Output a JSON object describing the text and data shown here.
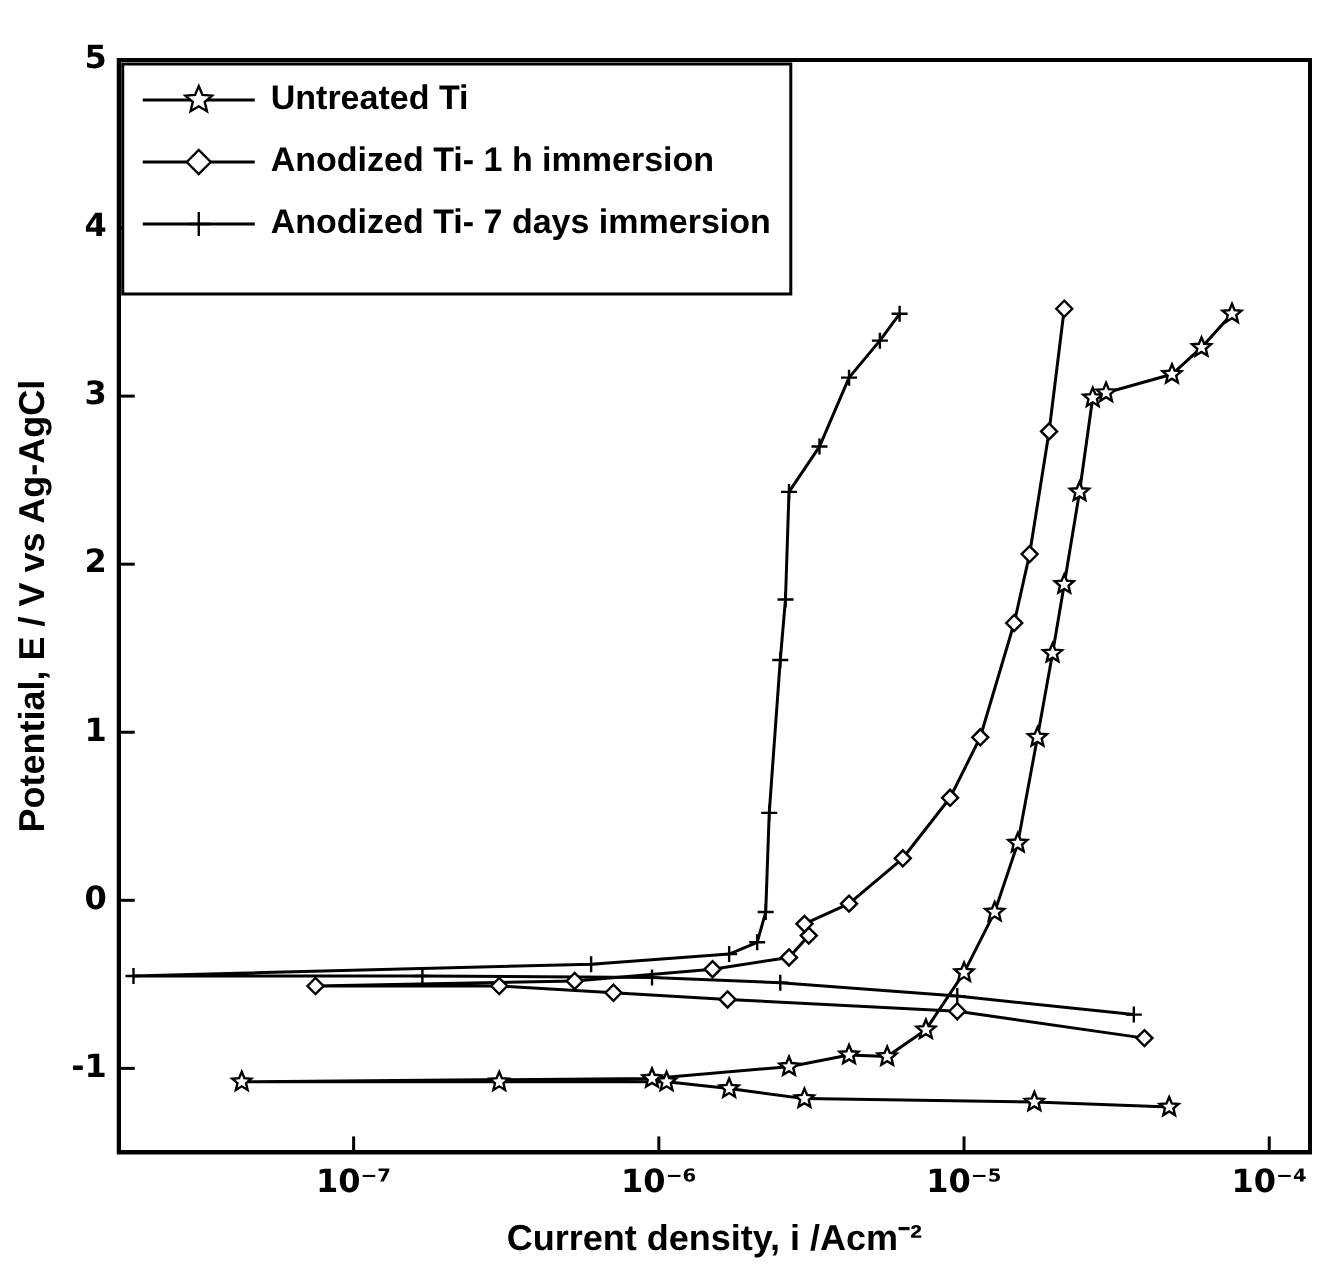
{
  "chart_data": {
    "type": "line",
    "xlabel": "Current density, i /Acm⁻²",
    "ylabel": "Potential, E / V vs Ag-AgCl",
    "log": "x",
    "xlim": [
      1.7e-08,
      0.000136
    ],
    "ylim": [
      -1.5,
      5
    ],
    "xticks": [
      {
        "value": 1e-07,
        "label": "10⁻⁷"
      },
      {
        "value": 1e-06,
        "label": "10⁻⁶"
      },
      {
        "value": 1e-05,
        "label": "10⁻⁵"
      },
      {
        "value": 0.0001,
        "label": "10⁻⁴"
      }
    ],
    "yticks": [
      -1,
      0,
      1,
      2,
      3,
      4,
      5
    ],
    "grid": false,
    "legend": "top left",
    "series": [
      {
        "name": "Untreated Ti",
        "color": "#000000",
        "marker": "star",
        "x": [
          4.7e-05,
          1.7e-05,
          3e-06,
          1.7e-06,
          1.06e-06,
          3e-07,
          4.3e-08,
          9.5e-07,
          2.67e-06,
          4.2e-06,
          5.6e-06,
          7.5e-06,
          1e-05,
          1.26e-05,
          1.5e-05,
          1.74e-05,
          1.95e-05,
          2.13e-05,
          2.39e-05,
          2.64e-05,
          2.92e-05,
          4.8e-05,
          6e-05,
          7.55e-05
        ],
        "values": [
          -1.23,
          -1.2,
          -1.18,
          -1.12,
          -1.08,
          -1.08,
          -1.08,
          -1.06,
          -0.99,
          -0.92,
          -0.93,
          -0.77,
          -0.43,
          -0.07,
          0.34,
          0.97,
          1.47,
          1.88,
          2.43,
          2.99,
          3.02,
          3.13,
          3.29,
          3.49
        ]
      },
      {
        "name": "Anodized Ti- 1 h immersion",
        "color": "#000000",
        "marker": "diamond",
        "x": [
          3.9e-05,
          9.5e-06,
          1.68e-06,
          7.1e-07,
          3e-07,
          7.5e-08,
          5.3e-07,
          1.5e-06,
          2.67e-06,
          3.1e-06,
          3e-06,
          4.2e-06,
          6.3e-06,
          9e-06,
          1.13e-05,
          1.46e-05,
          1.64e-05,
          1.9e-05,
          2.13e-05
        ],
        "values": [
          -0.82,
          -0.66,
          -0.59,
          -0.55,
          -0.51,
          -0.51,
          -0.48,
          -0.41,
          -0.34,
          -0.21,
          -0.14,
          -0.02,
          0.25,
          0.61,
          0.97,
          1.65,
          2.06,
          2.79,
          3.52
        ]
      },
      {
        "name": "Anodized Ti- 7 days immersion",
        "color": "#000000",
        "marker": "cross",
        "x": [
          3.6e-05,
          9.5e-06,
          2.5e-06,
          9.5e-07,
          1.68e-07,
          1.9e-08,
          6e-07,
          1.7e-06,
          2.1e-06,
          2.24e-06,
          2.3e-06,
          2.5e-06,
          2.6e-06,
          2.67e-06,
          3.36e-06,
          4.2e-06,
          5.3e-06,
          6.15e-06
        ],
        "values": [
          -0.68,
          -0.57,
          -0.49,
          -0.46,
          -0.45,
          -0.45,
          -0.38,
          -0.32,
          -0.25,
          -0.07,
          0.52,
          1.43,
          1.79,
          2.43,
          2.7,
          3.11,
          3.33,
          3.49
        ]
      }
    ]
  }
}
